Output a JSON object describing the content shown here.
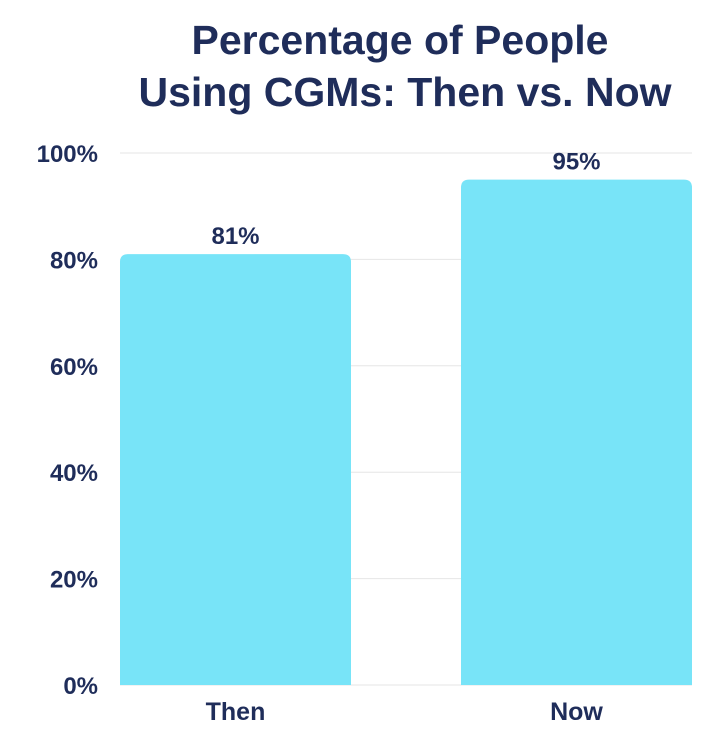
{
  "chart_data": {
    "type": "bar",
    "title_lines": [
      "Percentage of People",
      "Using CGMs: Then vs. Now"
    ],
    "categories": [
      "Then",
      "Now"
    ],
    "values": [
      81,
      95
    ],
    "value_labels": [
      "81%",
      "95%"
    ],
    "ylim": [
      0,
      100
    ],
    "yticks": [
      0,
      20,
      40,
      60,
      80,
      100
    ],
    "ytick_labels": [
      "0%",
      "20%",
      "40%",
      "60%",
      "80%",
      "100%"
    ],
    "grid": true,
    "bar_color": "#78e4f8",
    "grid_color": "#e6e6e6",
    "text_color": "#1f2d5a"
  }
}
